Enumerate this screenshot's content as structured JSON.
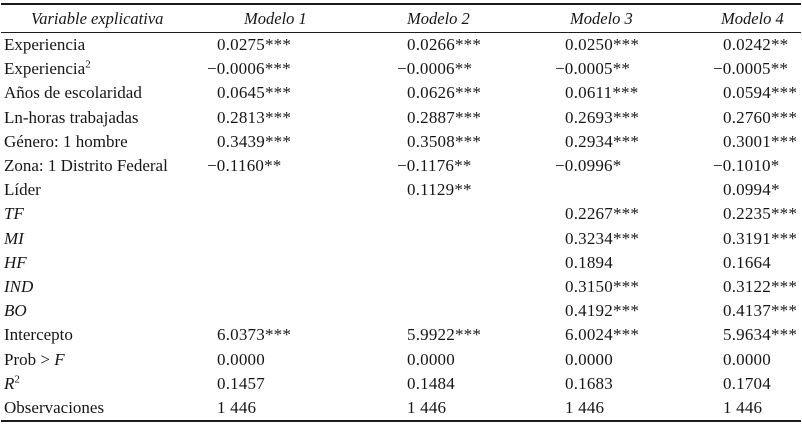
{
  "table": {
    "columns": [
      "Variable explicativa",
      "Modelo 1",
      "Modelo 2",
      "Modelo 3",
      "Modelo 4"
    ],
    "rows": [
      {
        "label": [
          {
            "t": "Experiencia"
          }
        ],
        "values": [
          "0.0275***",
          "0.0266***",
          "0.0250***",
          "0.0242**"
        ]
      },
      {
        "label": [
          {
            "t": "Experiencia"
          },
          {
            "t": "2",
            "sup": true
          }
        ],
        "values": [
          "−0.0006***",
          "−0.0006**",
          "−0.0005**",
          "−0.0005**"
        ]
      },
      {
        "label": [
          {
            "t": "Años de escolaridad"
          }
        ],
        "values": [
          "0.0645***",
          "0.0626***",
          "0.0611***",
          "0.0594***"
        ]
      },
      {
        "label": [
          {
            "t": "Ln-horas trabajadas"
          }
        ],
        "values": [
          "0.2813***",
          "0.2887***",
          "0.2693***",
          "0.2760***"
        ]
      },
      {
        "label": [
          {
            "t": "Género: 1 hombre"
          }
        ],
        "values": [
          "0.3439***",
          "0.3508***",
          "0.2934***",
          "0.3001***"
        ]
      },
      {
        "label": [
          {
            "t": "Zona: 1 Distrito Federal"
          }
        ],
        "values": [
          "−0.1160**",
          "−0.1176**",
          "−0.0996*",
          "−0.1010*"
        ]
      },
      {
        "label": [
          {
            "t": "Líder"
          }
        ],
        "values": [
          "",
          "0.1129**",
          "",
          "0.0994*"
        ]
      },
      {
        "label": [
          {
            "t": "TF",
            "i": true
          }
        ],
        "values": [
          "",
          "",
          "0.2267***",
          "0.2235***"
        ]
      },
      {
        "label": [
          {
            "t": "MI",
            "i": true
          }
        ],
        "values": [
          "",
          "",
          "0.3234***",
          "0.3191***"
        ]
      },
      {
        "label": [
          {
            "t": "HF",
            "i": true
          }
        ],
        "values": [
          "",
          "",
          "0.1894",
          "0.1664"
        ]
      },
      {
        "label": [
          {
            "t": "IND",
            "i": true
          }
        ],
        "values": [
          "",
          "",
          "0.3150***",
          "0.3122***"
        ]
      },
      {
        "label": [
          {
            "t": "BO",
            "i": true
          }
        ],
        "values": [
          "",
          "",
          "0.4192***",
          "0.4137***"
        ]
      },
      {
        "label": [
          {
            "t": "Intercepto"
          }
        ],
        "values": [
          "6.0373***",
          "5.9922***",
          "6.0024***",
          "5.9634***"
        ]
      },
      {
        "label": [
          {
            "t": "Prob > "
          },
          {
            "t": "F",
            "i": true
          }
        ],
        "values": [
          "0.0000",
          "0.0000",
          "0.0000",
          "0.0000"
        ]
      },
      {
        "label": [
          {
            "t": "R",
            "i": true
          },
          {
            "t": "2",
            "sup": true
          }
        ],
        "values": [
          "0.1457",
          "0.1484",
          "0.1683",
          "0.1704"
        ]
      },
      {
        "label": [
          {
            "t": "Observaciones"
          }
        ],
        "values": [
          "1 446",
          "1 446",
          "1 446",
          "1 446"
        ]
      }
    ],
    "text_color": "#161616",
    "rule_color": "#1c1c1c"
  }
}
